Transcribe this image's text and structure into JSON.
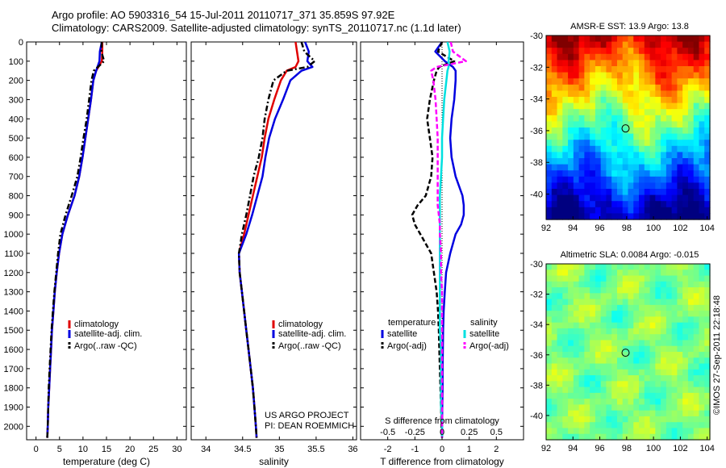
{
  "title_line1": "Argo profile: AO 5903316_54 15-Jul-2011 20110717_371 35.859S 97.92E",
  "title_line2": "Climatology: CARS2009. Satellite-adjusted climatology: synTS_20110717.nc (1.1d later)",
  "stamp": "©IMOS 27-Sep-2011 22:18:48",
  "colors": {
    "climatology": "#e00000",
    "satellite": "#0000e0",
    "argo": "#000000",
    "satellite_s": "#00e0e0",
    "argo_s": "#ff00ff"
  },
  "chart_data": [
    {
      "type": "line",
      "title": "",
      "xlabel": "temperature (deg C)",
      "ylabel": "",
      "xlim": [
        -2,
        32
      ],
      "ylim": [
        2070,
        0
      ],
      "xticks": [
        0,
        5,
        10,
        15,
        20,
        25,
        30
      ],
      "yticks": [
        0,
        100,
        200,
        300,
        400,
        500,
        600,
        700,
        800,
        900,
        1000,
        1100,
        1200,
        1300,
        1400,
        1500,
        1600,
        1700,
        1800,
        1900,
        2000
      ],
      "depth": [
        0,
        50,
        100,
        150,
        200,
        300,
        400,
        500,
        600,
        700,
        800,
        900,
        1000,
        1100,
        1200,
        1300,
        1400,
        1500,
        1600,
        1700,
        1800,
        1900,
        2000,
        2060
      ],
      "series": [
        {
          "name": "climatology",
          "style": "solid",
          "color": "#e00000",
          "values": [
            14.1,
            14.1,
            14.0,
            12.8,
            12.2,
            11.7,
            11.1,
            10.5,
            9.9,
            9.2,
            8.2,
            6.8,
            5.6,
            4.9,
            4.4,
            4.0,
            3.7,
            3.4,
            3.2,
            3.0,
            2.8,
            2.6,
            2.5,
            2.4
          ]
        },
        {
          "name": "satellite-adj. clim.",
          "style": "solid",
          "color": "#0000e0",
          "values": [
            14.0,
            13.6,
            13.5,
            12.8,
            12.2,
            11.7,
            11.1,
            10.5,
            9.9,
            9.2,
            8.2,
            6.8,
            5.6,
            4.9,
            4.4,
            4.0,
            3.7,
            3.4,
            3.2,
            3.0,
            2.8,
            2.6,
            2.5,
            2.4
          ]
        },
        {
          "name": "Argo(..raw -QC)",
          "style": "dashdot",
          "color": "#000000",
          "values": [
            14.0,
            13.9,
            14.5,
            12.3,
            11.8,
            11.3,
            10.8,
            10.1,
            9.5,
            8.8,
            7.6,
            6.3,
            5.2,
            4.7,
            4.3,
            3.9,
            3.6,
            3.3,
            3.1,
            2.9,
            2.7,
            2.6,
            2.5,
            2.4
          ]
        }
      ],
      "legend": [
        "climatology",
        "satellite-adj. clim.",
        "Argo(..raw -QC)"
      ],
      "legend_position": "lower-center"
    },
    {
      "type": "line",
      "title": "",
      "xlabel": "salinity",
      "ylabel": "",
      "xlim": [
        33.8,
        36.05
      ],
      "ylim": [
        2070,
        0
      ],
      "xticks": [
        34,
        34.5,
        35,
        35.5,
        36
      ],
      "depth": [
        0,
        50,
        100,
        130,
        150,
        200,
        300,
        400,
        500,
        600,
        700,
        800,
        900,
        1000,
        1100,
        1200,
        1300,
        1400,
        1500,
        1600,
        1700,
        1800,
        1900,
        2000,
        2060
      ],
      "series": [
        {
          "name": "climatology",
          "style": "solid",
          "color": "#e00000",
          "values": [
            35.22,
            35.24,
            35.26,
            35.22,
            35.1,
            35.02,
            34.93,
            34.85,
            34.8,
            34.76,
            34.7,
            34.64,
            34.58,
            34.52,
            34.45,
            34.46,
            34.49,
            34.52,
            34.55,
            34.58,
            34.61,
            34.64,
            34.66,
            34.68,
            34.69
          ]
        },
        {
          "name": "satellite-adj. clim.",
          "style": "solid",
          "color": "#0000e0",
          "values": [
            35.35,
            35.4,
            35.38,
            35.45,
            35.3,
            35.15,
            35.05,
            34.94,
            34.86,
            34.81,
            34.77,
            34.7,
            34.63,
            34.55,
            34.45,
            34.46,
            34.49,
            34.52,
            34.55,
            34.58,
            34.61,
            34.64,
            34.66,
            34.68,
            34.69
          ]
        },
        {
          "name": "Argo(..raw -QC)",
          "style": "dashdot",
          "color": "#000000",
          "values": [
            35.3,
            35.34,
            35.48,
            35.38,
            35.1,
            34.92,
            34.85,
            34.8,
            34.77,
            34.72,
            34.65,
            34.6,
            34.55,
            34.49,
            34.45,
            34.46,
            34.49,
            34.52,
            34.55,
            34.58,
            34.61,
            34.64,
            34.66,
            34.68,
            34.69
          ]
        }
      ],
      "legend": [
        "climatology",
        "satellite-adj. clim.",
        "Argo(..raw -QC)"
      ],
      "legend_position": "lower-center",
      "annotations": [
        "US ARGO PROJECT",
        "PI: DEAN ROEMMICH"
      ]
    },
    {
      "type": "line",
      "title": "",
      "xlabel": "T difference from climatology",
      "xlabel_top": "S difference from climatology",
      "xlim": [
        -3,
        3
      ],
      "ylim": [
        2070,
        0
      ],
      "xticks": [
        -2,
        -1,
        0,
        1,
        2
      ],
      "xtick_labels": [
        "-2",
        "-1",
        "0",
        "1",
        "2"
      ],
      "s_xticks": [
        -0.5,
        -0.25,
        0,
        0.25,
        0.5
      ],
      "s_xtick_labels": [
        "-0.5",
        "-0.25",
        "0",
        "0.25",
        "0.5"
      ],
      "depth": [
        0,
        50,
        100,
        130,
        150,
        200,
        300,
        400,
        500,
        600,
        700,
        800,
        850,
        900,
        950,
        1000,
        1100,
        1200,
        1300,
        1400,
        1500,
        1600,
        1700,
        1800,
        1900,
        2000,
        2060
      ],
      "series": [
        {
          "name": "temperature satellite",
          "style": "solid",
          "color": "#0000e0",
          "values": [
            0.0,
            -0.25,
            0.1,
            0.4,
            0.5,
            0.5,
            0.45,
            0.35,
            0.3,
            0.35,
            0.5,
            0.75,
            0.8,
            0.8,
            0.7,
            0.5,
            0.3,
            0.15,
            0.1,
            0.06,
            0.04,
            0.03,
            0.02,
            0.02,
            0.01,
            0.0,
            0.0
          ]
        },
        {
          "name": "temperature Argo(-adj)",
          "style": "dashed",
          "color": "#000000",
          "values": [
            0.0,
            -0.15,
            0.45,
            -0.1,
            -0.2,
            -0.3,
            -0.45,
            -0.55,
            -0.45,
            -0.35,
            -0.4,
            -0.6,
            -0.9,
            -1.1,
            -1.0,
            -0.8,
            -0.4,
            -0.3,
            -0.2,
            -0.15,
            -0.12,
            -0.1,
            -0.08,
            -0.06,
            -0.04,
            -0.02,
            0.0
          ]
        },
        {
          "name": "salinity satellite",
          "style": "solid",
          "color": "#00e0e0",
          "values": [
            0.05,
            0.07,
            0.06,
            0.06,
            0.05,
            0.04,
            0.02,
            0.01,
            0.0,
            0.0,
            -0.01,
            -0.02,
            -0.02,
            -0.02,
            -0.02,
            -0.02,
            -0.02,
            -0.02,
            -0.02,
            -0.02,
            -0.02,
            -0.01,
            -0.01,
            -0.01,
            -0.01,
            0.0,
            0.0
          ]
        },
        {
          "name": "salinity Argo(-adj)",
          "style": "dashed",
          "color": "#ff00ff",
          "values": [
            0.08,
            0.1,
            0.22,
            -0.05,
            -0.1,
            -0.08,
            -0.06,
            -0.05,
            -0.04,
            -0.04,
            -0.04,
            -0.04,
            -0.04,
            -0.03,
            -0.02,
            -0.02,
            -0.01,
            -0.01,
            0.0,
            0.0,
            0.0,
            0.0,
            0.0,
            0.0,
            0.0,
            0.0,
            0.0
          ]
        }
      ],
      "legend_headers": [
        "temperature",
        "salinity"
      ],
      "legend": [
        "satellite",
        "Argo(-adj)",
        "satellite",
        "Argo(-adj)"
      ],
      "legend_position": "lower-center"
    },
    {
      "type": "heatmap",
      "title": "AMSR-E SST: 13.9 Argo: 13.8",
      "xlim": [
        92,
        104.2
      ],
      "ylim": [
        -41.6,
        -30
      ],
      "xticks": [
        92,
        94,
        96,
        98,
        100,
        102,
        104
      ],
      "yticks": [
        -30,
        -32,
        -34,
        -36,
        -38,
        -40
      ],
      "colormap": "jet",
      "value_range": [
        10,
        20
      ],
      "marker": {
        "lon": 97.92,
        "lat": -35.859
      },
      "gradient": "warm north (about 19) to cool south (about 11)"
    },
    {
      "type": "heatmap",
      "title": "Altimetric SLA: 0.0084 Argo: -0.015",
      "xlim": [
        92,
        104.2
      ],
      "ylim": [
        -41.6,
        -30
      ],
      "xticks": [
        92,
        94,
        96,
        98,
        100,
        102,
        104
      ],
      "yticks": [
        -30,
        -32,
        -34,
        -36,
        -38,
        -40
      ],
      "colormap": "jet",
      "value_range": [
        -0.5,
        0.5
      ],
      "marker": {
        "lon": 97.92,
        "lat": -35.859
      },
      "gradient": "near zero everywhere with small highs and lows"
    }
  ]
}
